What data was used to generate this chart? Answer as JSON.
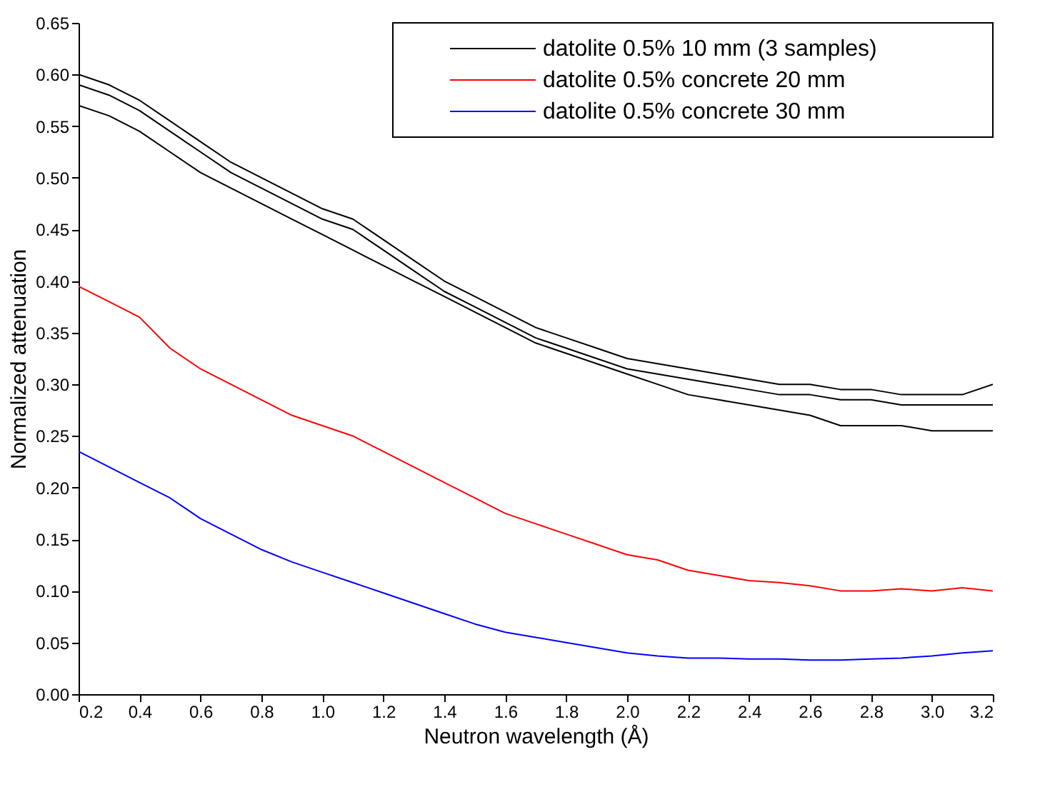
{
  "chart_data": {
    "type": "line",
    "xlabel": "Neutron wavelength (Å)",
    "ylabel": "Normalized attenuation",
    "x": [
      0.2,
      0.3,
      0.4,
      0.5,
      0.6,
      0.7,
      0.8,
      0.9,
      1.0,
      1.1,
      1.2,
      1.3,
      1.4,
      1.5,
      1.6,
      1.7,
      1.8,
      1.9,
      2.0,
      2.1,
      2.2,
      2.3,
      2.4,
      2.5,
      2.6,
      2.7,
      2.8,
      2.9,
      3.0,
      3.1,
      3.2
    ],
    "series": [
      {
        "name": "datolite 0.5% 10 mm (3 samples)",
        "color": "#000000",
        "values": [
          0.6,
          0.59,
          0.575,
          0.555,
          0.535,
          0.515,
          0.5,
          0.485,
          0.47,
          0.46,
          0.44,
          0.42,
          0.4,
          0.385,
          0.37,
          0.355,
          0.345,
          0.335,
          0.325,
          0.32,
          0.315,
          0.31,
          0.305,
          0.3,
          0.3,
          0.295,
          0.295,
          0.29,
          0.29,
          0.29,
          0.3
        ]
      },
      {
        "color": "#000000",
        "values": [
          0.59,
          0.58,
          0.565,
          0.545,
          0.525,
          0.505,
          0.49,
          0.475,
          0.46,
          0.45,
          0.43,
          0.41,
          0.39,
          0.375,
          0.36,
          0.345,
          0.335,
          0.325,
          0.315,
          0.31,
          0.305,
          0.3,
          0.295,
          0.29,
          0.29,
          0.285,
          0.285,
          0.28,
          0.28,
          0.28,
          0.28
        ]
      },
      {
        "color": "#000000",
        "values": [
          0.57,
          0.56,
          0.545,
          0.525,
          0.505,
          0.49,
          0.475,
          0.46,
          0.445,
          0.43,
          0.415,
          0.4,
          0.385,
          0.37,
          0.355,
          0.34,
          0.33,
          0.32,
          0.31,
          0.3,
          0.29,
          0.285,
          0.28,
          0.275,
          0.27,
          0.26,
          0.26,
          0.26,
          0.255,
          0.255,
          0.255
        ]
      },
      {
        "name": "datolite 0.5% concrete 20 mm",
        "color": "#ff0000",
        "values": [
          0.395,
          0.38,
          0.365,
          0.335,
          0.315,
          0.3,
          0.285,
          0.27,
          0.26,
          0.25,
          0.235,
          0.22,
          0.205,
          0.19,
          0.175,
          0.165,
          0.155,
          0.145,
          0.135,
          0.13,
          0.12,
          0.115,
          0.11,
          0.108,
          0.105,
          0.1,
          0.1,
          0.102,
          0.1,
          0.103,
          0.1
        ]
      },
      {
        "name": "datolite 0.5% concrete 30 mm",
        "color": "#0000ff",
        "values": [
          0.235,
          0.22,
          0.205,
          0.19,
          0.17,
          0.155,
          0.14,
          0.128,
          0.118,
          0.108,
          0.098,
          0.088,
          0.078,
          0.068,
          0.06,
          0.055,
          0.05,
          0.045,
          0.04,
          0.037,
          0.035,
          0.035,
          0.034,
          0.034,
          0.033,
          0.033,
          0.034,
          0.035,
          0.037,
          0.04,
          0.042
        ]
      }
    ],
    "xlim": [
      0.2,
      3.2
    ],
    "xticks": [
      0.2,
      0.4,
      0.6,
      0.8,
      {
        "value": 1,
        "label": "1.0"
      },
      1.2,
      1.4,
      1.6,
      1.8,
      {
        "value": 2,
        "label": "2.0"
      },
      2.2,
      2.4,
      2.6,
      2.8,
      {
        "value": 3,
        "label": "3.0"
      },
      3.2
    ],
    "ylim": [
      0,
      0.65
    ],
    "yticks": [
      {
        "value": 0,
        "label": "0.00"
      },
      0.05,
      {
        "value": 0.1,
        "label": "0.10"
      },
      0.15,
      {
        "value": 0.2,
        "label": "0.20"
      },
      0.25,
      {
        "value": 0.3,
        "label": "0.30"
      },
      0.35,
      {
        "value": 0.4,
        "label": "0.40"
      },
      0.45,
      {
        "value": 0.5,
        "label": "0.50"
      },
      0.55,
      {
        "value": 0.6,
        "label": "0.60"
      },
      0.65
    ],
    "legend": "top right",
    "grid": false,
    "marker": "none",
    "line_style": "solid"
  }
}
